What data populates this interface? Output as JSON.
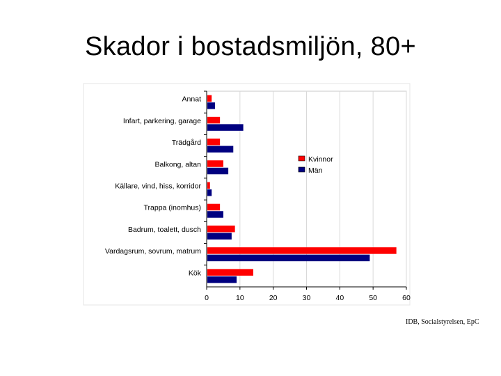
{
  "slide": {
    "title": "Skador i bostadsmiljön, 80+",
    "source": "IDB, Socialstyrelsen, EpC"
  },
  "chart_data": {
    "type": "bar",
    "orientation": "horizontal",
    "title": "",
    "xlabel": "",
    "ylabel": "",
    "categories": [
      "Annat",
      "Infart, parkering, garage",
      "Trädgård",
      "Balkong, altan",
      "Källare, vind, hiss, korridor",
      "Trappa (inomhus)",
      "Badrum, toalett, dusch",
      "Vardagsrum, sovrum, matrum",
      "Kök"
    ],
    "series": [
      {
        "name": "Kvinnor",
        "color": "#ff0000",
        "values": [
          1.5,
          4,
          4,
          5,
          1,
          4,
          8.5,
          57,
          14
        ]
      },
      {
        "name": "Män",
        "color": "#000080",
        "values": [
          2.5,
          11,
          8,
          6.5,
          1.5,
          5,
          7.5,
          49,
          9
        ]
      }
    ],
    "xlim": [
      0,
      60
    ],
    "xticks": [
      0,
      10,
      20,
      30,
      40,
      50,
      60
    ],
    "grid": true,
    "legend_position": "right"
  }
}
